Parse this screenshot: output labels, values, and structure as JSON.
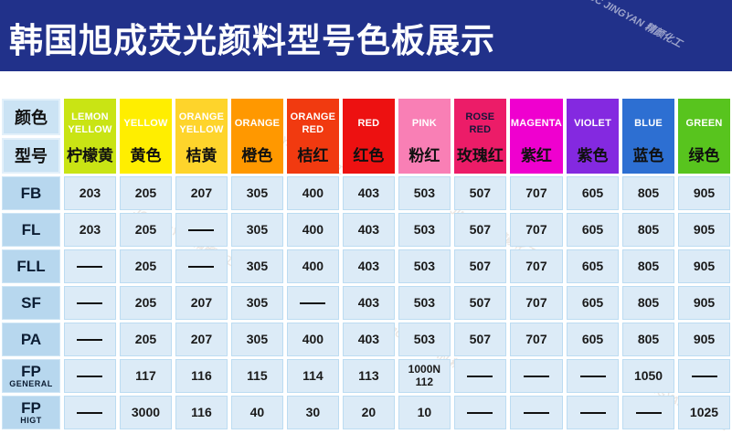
{
  "banner": {
    "title": "韩国旭成荧光颜料型号色板展示",
    "watermark": "JC JINGYAN 精颜化工"
  },
  "corner": {
    "top_label": "颜色",
    "bottom_label": "型号"
  },
  "columns": [
    {
      "en": "LEMON YELLOW",
      "zh": "柠檬黄",
      "bg": "#c9e414",
      "en_color": "#ffffff"
    },
    {
      "en": "YELLOW",
      "zh": "黄色",
      "bg": "#ffee00",
      "en_color": "#ffffff"
    },
    {
      "en": "ORANGE YELLOW",
      "zh": "桔黄",
      "bg": "#fed42b",
      "en_color": "#ffffff"
    },
    {
      "en": "ORANGE",
      "zh": "橙色",
      "bg": "#ff9800",
      "en_color": "#ffffff"
    },
    {
      "en": "ORANGE RED",
      "zh": "桔红",
      "bg": "#f13a10",
      "en_color": "#ffffff"
    },
    {
      "en": "RED",
      "zh": "红色",
      "bg": "#ed1111",
      "en_color": "#ffffff"
    },
    {
      "en": "PINK",
      "zh": "粉红",
      "bg": "#f97fb5",
      "en_color": "#ffffff"
    },
    {
      "en": "ROSE RED",
      "zh": "玫瑰红",
      "bg": "#ec1c68",
      "en_color": "#16163a"
    },
    {
      "en": "MAGENTA",
      "zh": "紫红",
      "bg": "#ef00cf",
      "en_color": "#ffffff"
    },
    {
      "en": "VIOLET",
      "zh": "紫色",
      "bg": "#8429e0",
      "en_color": "#ffffff"
    },
    {
      "en": "BLUE",
      "zh": "蓝色",
      "bg": "#2d6fd2",
      "en_color": "#ffffff"
    },
    {
      "en": "GREEN",
      "zh": "绿色",
      "bg": "#58c41e",
      "en_color": "#ffffff"
    }
  ],
  "rows": [
    {
      "label": "FB",
      "sublabel": "",
      "values": [
        "203",
        "205",
        "207",
        "305",
        "400",
        "403",
        "503",
        "507",
        "707",
        "605",
        "805",
        "905"
      ]
    },
    {
      "label": "FL",
      "sublabel": "",
      "values": [
        "203",
        "205",
        "——",
        "305",
        "400",
        "403",
        "503",
        "507",
        "707",
        "605",
        "805",
        "905"
      ]
    },
    {
      "label": "FLL",
      "sublabel": "",
      "values": [
        "——",
        "205",
        "——",
        "305",
        "400",
        "403",
        "503",
        "507",
        "707",
        "605",
        "805",
        "905"
      ]
    },
    {
      "label": "SF",
      "sublabel": "",
      "values": [
        "——",
        "205",
        "207",
        "305",
        "——",
        "403",
        "503",
        "507",
        "707",
        "605",
        "805",
        "905"
      ]
    },
    {
      "label": "PA",
      "sublabel": "",
      "values": [
        "——",
        "205",
        "207",
        "305",
        "400",
        "403",
        "503",
        "507",
        "707",
        "605",
        "805",
        "905"
      ]
    },
    {
      "label": "FP",
      "sublabel": "GENERAL",
      "values": [
        "——",
        "117",
        "116",
        "115",
        "114",
        "113",
        "1000N\n112",
        "——",
        "——",
        "——",
        "1050",
        "——"
      ]
    },
    {
      "label": "FP",
      "sublabel": "HIGT",
      "values": [
        "——",
        "3000",
        "116",
        "40",
        "30",
        "20",
        "10",
        "——",
        "——",
        "——",
        "——",
        "1025"
      ]
    }
  ]
}
